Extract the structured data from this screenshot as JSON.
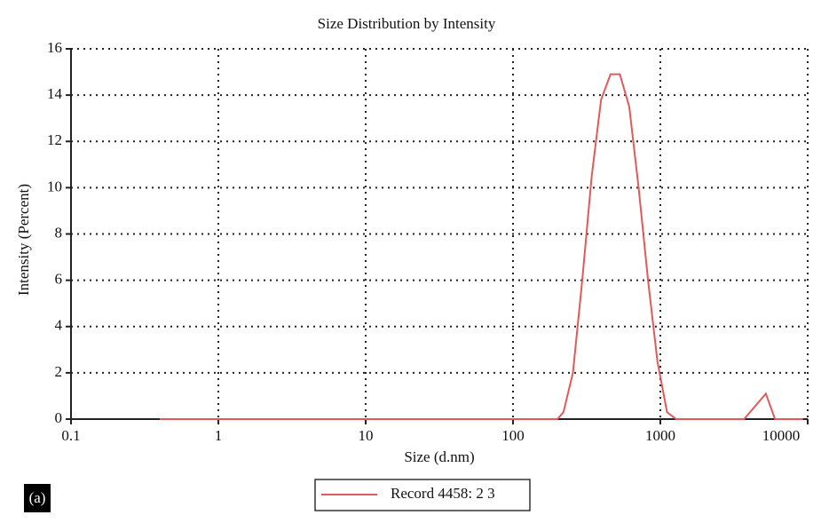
{
  "chart_data": {
    "type": "line",
    "title": "Size Distribution by Intensity",
    "xlabel": "Size (d.nm)",
    "ylabel": "Intensity (Percent)",
    "x": [
      0.4,
      200,
      220,
      255,
      295,
      342,
      396,
      459,
      531,
      615,
      712,
      825,
      955,
      1110,
      1280,
      3700,
      5200,
      6000,
      9300
    ],
    "series": [
      {
        "name": "Record 4458: 2 3",
        "color": "#e05a5a",
        "values": [
          0,
          0,
          0.3,
          2,
          6,
          10.5,
          13.8,
          14.9,
          14.9,
          13.5,
          10,
          6,
          2.5,
          0.3,
          0,
          0,
          1.1,
          0,
          0
        ]
      }
    ],
    "xscale": "log",
    "xlim": [
      0.1,
      10000
    ],
    "xticks": [
      0.1,
      1,
      10,
      100,
      1000,
      10000
    ],
    "ylim": [
      0,
      16
    ],
    "yticks": [
      0,
      2,
      4,
      6,
      8,
      10,
      12,
      14,
      16
    ],
    "grid": true,
    "panel_label": "(a)"
  }
}
